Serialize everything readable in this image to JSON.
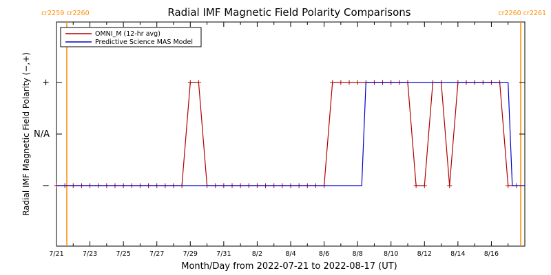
{
  "chart_data": {
    "type": "line",
    "title": "Radial IMF Magnetic Field Polarity Comparisons",
    "xlabel": "Month/Day from 2022-07-21 to 2022-08-17 (UT)",
    "ylabel": "Radial IMF Magnetic Field Polarity (−,+)",
    "x_range": [
      "2022-07-21T00:00",
      "2022-08-18T00:00"
    ],
    "x_tick_labels": [
      "7/21",
      "7/23",
      "7/25",
      "7/27",
      "7/29",
      "7/31",
      "8/2",
      "8/4",
      "8/6",
      "8/8",
      "8/10",
      "8/12",
      "8/14",
      "8/16"
    ],
    "y_tick_labels": [
      "+",
      "N/A",
      "−"
    ],
    "y_levels": [
      "−",
      "N/A",
      "+"
    ],
    "legend_position": "top-left",
    "carrington_markers": [
      {
        "label": "cr2259 cr2260",
        "position": "top-left"
      },
      {
        "label": "cr2260 cr2261",
        "position": "top-right"
      }
    ],
    "series": [
      {
        "name": "OMNI_M (12-hr avg)",
        "color": "#B00000",
        "marker": "+",
        "x": [
          "2022-07-21T00:00",
          "2022-07-21T12:00",
          "2022-07-22T00:00",
          "2022-07-22T12:00",
          "2022-07-23T00:00",
          "2022-07-23T12:00",
          "2022-07-24T00:00",
          "2022-07-24T12:00",
          "2022-07-25T00:00",
          "2022-07-25T12:00",
          "2022-07-26T00:00",
          "2022-07-26T12:00",
          "2022-07-27T00:00",
          "2022-07-27T12:00",
          "2022-07-28T00:00",
          "2022-07-28T12:00",
          "2022-07-29T00:00",
          "2022-07-29T12:00",
          "2022-07-30T00:00",
          "2022-07-30T12:00",
          "2022-07-31T00:00",
          "2022-07-31T12:00",
          "2022-08-01T00:00",
          "2022-08-01T12:00",
          "2022-08-02T00:00",
          "2022-08-02T12:00",
          "2022-08-03T00:00",
          "2022-08-03T12:00",
          "2022-08-04T00:00",
          "2022-08-04T12:00",
          "2022-08-05T00:00",
          "2022-08-05T12:00",
          "2022-08-06T00:00",
          "2022-08-06T12:00",
          "2022-08-07T00:00",
          "2022-08-07T12:00",
          "2022-08-08T00:00",
          "2022-08-08T12:00",
          "2022-08-09T00:00",
          "2022-08-09T12:00",
          "2022-08-10T00:00",
          "2022-08-10T12:00",
          "2022-08-11T00:00",
          "2022-08-11T12:00",
          "2022-08-12T00:00",
          "2022-08-12T12:00",
          "2022-08-13T00:00",
          "2022-08-13T12:00",
          "2022-08-14T00:00",
          "2022-08-14T12:00",
          "2022-08-15T00:00",
          "2022-08-15T12:00",
          "2022-08-16T00:00",
          "2022-08-16T12:00",
          "2022-08-17T00:00",
          "2022-08-17T12:00"
        ],
        "y": [
          "−",
          "−",
          "−",
          "−",
          "−",
          "−",
          "−",
          "−",
          "−",
          "−",
          "−",
          "−",
          "−",
          "−",
          "−",
          "−",
          "+",
          "+",
          "−",
          "−",
          "−",
          "−",
          "−",
          "−",
          "−",
          "−",
          "−",
          "−",
          "−",
          "−",
          "−",
          "−",
          "−",
          "+",
          "+",
          "+",
          "+",
          "+",
          "+",
          "+",
          "+",
          "+",
          "+",
          "−",
          "−",
          "+",
          "+",
          "−",
          "+",
          "+",
          "+",
          "+",
          "+",
          "+",
          "−",
          "−"
        ]
      },
      {
        "name": "Predictive Science MAS Model",
        "color": "#0000CC",
        "marker": "none",
        "x": [
          "2022-07-21T00:00",
          "2022-08-08T06:00",
          "2022-08-08T12:00",
          "2022-08-17T00:00",
          "2022-08-17T06:00",
          "2022-08-18T00:00"
        ],
        "y": [
          "−",
          "−",
          "+",
          "+",
          "−",
          "−"
        ]
      }
    ]
  }
}
